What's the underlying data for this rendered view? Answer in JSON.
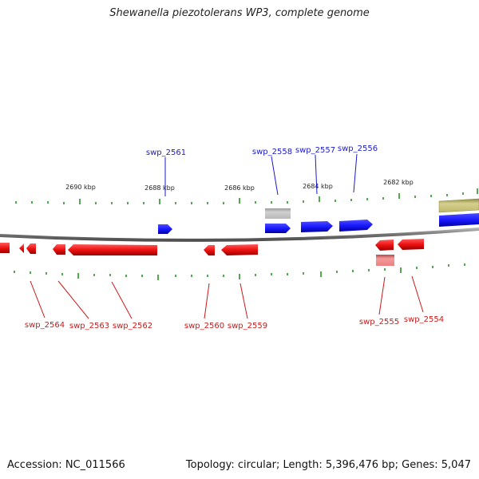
{
  "title": "Shewanella piezotolerans WP3, complete genome",
  "footer": {
    "accession": "Accession: NC_011566",
    "stats": "Topology: circular; Length: 5,396,476 bp; Genes: 5,047"
  },
  "kbp_labels": [
    "2690 kbp",
    "2688 kbp",
    "2686 kbp",
    "2684 kbp",
    "2682 kbp"
  ],
  "genes_forward": [
    "swp_2561",
    "swp_2558",
    "swp_2557",
    "swp_2556"
  ],
  "genes_reverse": [
    "swp_2564",
    "swp_2563",
    "swp_2562",
    "swp_2560",
    "swp_2559",
    "swp_2555",
    "swp_2554"
  ],
  "colors": {
    "forward": "#1a1aff",
    "reverse": "#ff1a1a",
    "pseudo_forward": "#b8b8b8",
    "pseudo_reverse": "#f08a8a",
    "rna": "#bdb76b",
    "backbone": "#808080",
    "tick": "#1a8a1a"
  }
}
